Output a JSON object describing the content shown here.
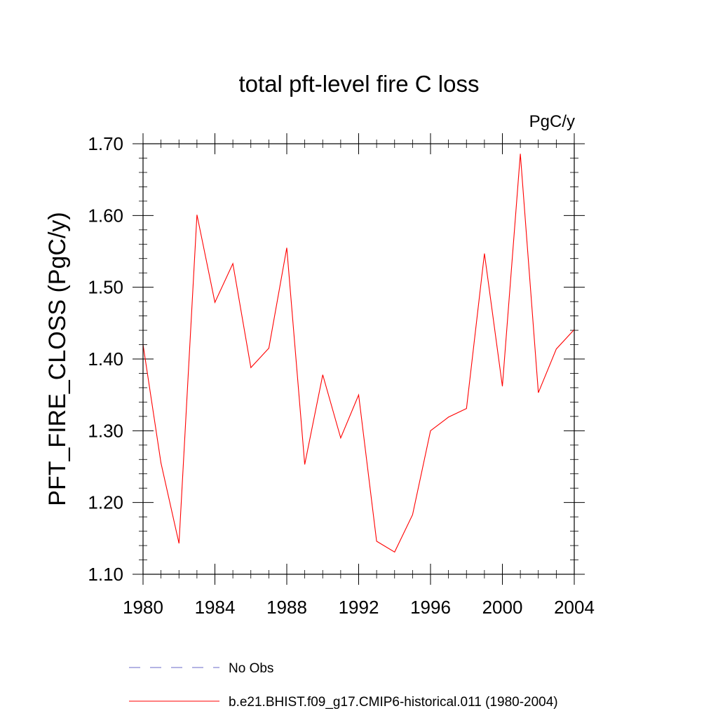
{
  "chart_data": {
    "type": "line",
    "title": "total pft-level fire C loss",
    "unit_label": "PgC/y",
    "xlabel": "",
    "ylabel": "PFT_FIRE_CLOSS  (PgC/y)",
    "xlim": [
      1980,
      2004
    ],
    "ylim": [
      1.1,
      1.7
    ],
    "x_ticks": [
      1980,
      1984,
      1988,
      1992,
      1996,
      2000,
      2004
    ],
    "y_ticks": [
      "1.10",
      "1.20",
      "1.30",
      "1.40",
      "1.50",
      "1.60",
      "1.70"
    ],
    "x_tick_labels": [
      "1980",
      "1984",
      "1988",
      "1992",
      "1996",
      "2000",
      "2004"
    ],
    "grid": false,
    "legend_position": "bottom",
    "series": [
      {
        "name": "b.e21.BHIST.f09_g17.CMIP6-historical.011 (1980-2004)",
        "color": "#ff0000",
        "style": "solid",
        "x": [
          1980,
          1981,
          1982,
          1983,
          1984,
          1985,
          1986,
          1987,
          1988,
          1989,
          1990,
          1991,
          1992,
          1993,
          1994,
          1995,
          1996,
          1997,
          1998,
          1999,
          2000,
          2001,
          2002,
          2003,
          2004
        ],
        "y": [
          1.42,
          1.255,
          1.143,
          1.601,
          1.479,
          1.533,
          1.388,
          1.415,
          1.555,
          1.253,
          1.378,
          1.29,
          1.35,
          1.146,
          1.131,
          1.183,
          1.3,
          1.319,
          1.331,
          1.547,
          1.362,
          1.686,
          1.353,
          1.414,
          1.441
        ]
      }
    ],
    "legend": [
      {
        "label": "No Obs",
        "color": "#6a6ac8",
        "style": "dashed"
      },
      {
        "label": "b.e21.BHIST.f09_g17.CMIP6-historical.011 (1980-2004)",
        "color": "#ff0000",
        "style": "solid"
      }
    ]
  }
}
